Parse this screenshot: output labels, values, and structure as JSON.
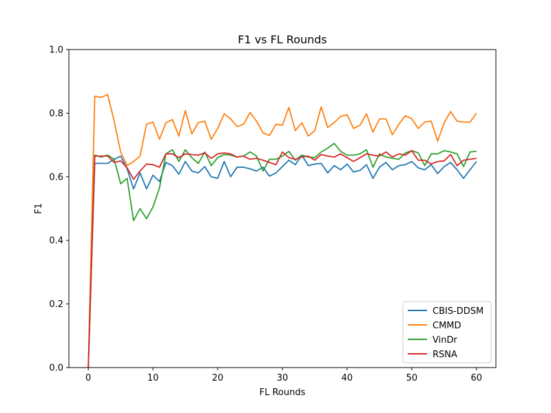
{
  "chart_data": {
    "type": "line",
    "title": "F1 vs FL Rounds",
    "xlabel": "FL Rounds",
    "ylabel": "F1",
    "xlim": [
      -3,
      63
    ],
    "ylim": [
      0.0,
      1.0
    ],
    "x_ticks": [
      0,
      10,
      20,
      30,
      40,
      50,
      60
    ],
    "y_ticks": [
      "0.0",
      "0.2",
      "0.4",
      "0.6",
      "0.8",
      "1.0"
    ],
    "grid": false,
    "legend_position": "lower-right",
    "x": [
      0,
      1,
      2,
      3,
      4,
      5,
      6,
      7,
      8,
      9,
      10,
      11,
      12,
      13,
      14,
      15,
      16,
      17,
      18,
      19,
      20,
      21,
      22,
      23,
      24,
      25,
      26,
      27,
      28,
      29,
      30,
      31,
      32,
      33,
      34,
      35,
      36,
      37,
      38,
      39,
      40,
      41,
      42,
      43,
      44,
      45,
      46,
      47,
      48,
      49,
      50,
      51,
      52,
      53,
      54,
      55,
      56,
      57,
      58,
      59,
      60
    ],
    "series": [
      {
        "name": "CBIS-DDSM",
        "color": "#1f77b4",
        "values": [
          0.0,
          0.642,
          0.642,
          0.642,
          0.655,
          0.665,
          0.625,
          0.562,
          0.612,
          0.562,
          0.605,
          0.585,
          0.645,
          0.635,
          0.608,
          0.648,
          0.618,
          0.612,
          0.632,
          0.6,
          0.595,
          0.648,
          0.6,
          0.63,
          0.63,
          0.625,
          0.618,
          0.63,
          0.602,
          0.612,
          0.632,
          0.652,
          0.638,
          0.668,
          0.635,
          0.64,
          0.642,
          0.612,
          0.635,
          0.622,
          0.64,
          0.615,
          0.62,
          0.638,
          0.595,
          0.63,
          0.645,
          0.622,
          0.635,
          0.638,
          0.648,
          0.628,
          0.622,
          0.638,
          0.61,
          0.632,
          0.645,
          0.622,
          0.595,
          0.622,
          0.648
        ]
      },
      {
        "name": "CMMD",
        "color": "#ff7f0e",
        "values": [
          0.0,
          0.853,
          0.85,
          0.858,
          0.775,
          0.678,
          0.635,
          0.648,
          0.665,
          0.765,
          0.772,
          0.718,
          0.77,
          0.78,
          0.728,
          0.808,
          0.735,
          0.77,
          0.775,
          0.718,
          0.752,
          0.798,
          0.782,
          0.758,
          0.765,
          0.802,
          0.775,
          0.738,
          0.73,
          0.765,
          0.762,
          0.818,
          0.745,
          0.77,
          0.728,
          0.745,
          0.82,
          0.755,
          0.77,
          0.79,
          0.795,
          0.752,
          0.762,
          0.798,
          0.74,
          0.782,
          0.782,
          0.732,
          0.765,
          0.792,
          0.782,
          0.752,
          0.772,
          0.775,
          0.712,
          0.77,
          0.805,
          0.775,
          0.772,
          0.772,
          0.8
        ]
      },
      {
        "name": "VinDr",
        "color": "#2ca02c",
        "values": [
          0.0,
          0.668,
          0.662,
          0.668,
          0.655,
          0.578,
          0.595,
          0.462,
          0.5,
          0.468,
          0.505,
          0.565,
          0.672,
          0.685,
          0.648,
          0.685,
          0.66,
          0.642,
          0.678,
          0.635,
          0.66,
          0.67,
          0.668,
          0.662,
          0.665,
          0.678,
          0.665,
          0.618,
          0.655,
          0.655,
          0.665,
          0.68,
          0.652,
          0.668,
          0.662,
          0.66,
          0.678,
          0.69,
          0.705,
          0.68,
          0.668,
          0.668,
          0.672,
          0.685,
          0.63,
          0.672,
          0.662,
          0.658,
          0.655,
          0.675,
          0.682,
          0.675,
          0.635,
          0.672,
          0.672,
          0.682,
          0.678,
          0.672,
          0.632,
          0.678,
          0.68
        ]
      },
      {
        "name": "RSNA",
        "color": "#d62728",
        "values": [
          0.0,
          0.665,
          0.665,
          0.665,
          0.645,
          0.65,
          0.628,
          0.592,
          0.618,
          0.64,
          0.638,
          0.63,
          0.672,
          0.672,
          0.66,
          0.672,
          0.67,
          0.668,
          0.675,
          0.658,
          0.672,
          0.675,
          0.672,
          0.662,
          0.665,
          0.655,
          0.658,
          0.652,
          0.645,
          0.638,
          0.678,
          0.66,
          0.655,
          0.662,
          0.665,
          0.652,
          0.67,
          0.665,
          0.662,
          0.672,
          0.66,
          0.648,
          0.66,
          0.672,
          0.668,
          0.665,
          0.678,
          0.662,
          0.672,
          0.668,
          0.682,
          0.652,
          0.652,
          0.64,
          0.648,
          0.65,
          0.67,
          0.635,
          0.652,
          0.655,
          0.658
        ]
      }
    ]
  }
}
